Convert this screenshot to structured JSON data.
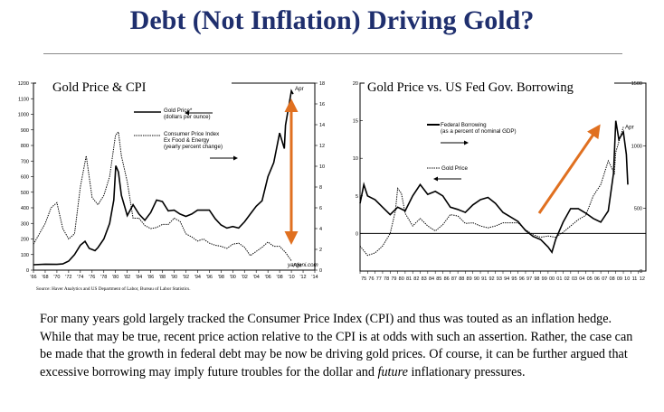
{
  "slide_title": "Debt (Not Inflation) Driving Gold?",
  "body_text": "For many years gold largely tracked the Consumer Price Index (CPI) and thus was touted as an inflation hedge.  While that may be true, recent price action relative to the CPI is at odds with such an assertion.  Rather, the case can be made that the growth in federal debt may be now be driving gold prices.  Of course, it can be further argued that excessive borrowing may imply",
  "body_text_end_before": "future troubles for the dollar and ",
  "body_text_emph": "future",
  "body_text_end_after": " inflationary pressures.",
  "accent_color": "#e07020",
  "title_color": "#1f2f6e",
  "chart_data": [
    {
      "type": "line",
      "title": "Gold Price & CPI",
      "source": "Source: Haver Analytics and US Department of Labor, Bureau of Labor Statistics.",
      "xlim": [
        1966,
        2014
      ],
      "x_ticks": [
        "'66",
        "'68",
        "'70",
        "'72",
        "'74",
        "'76",
        "'78",
        "'80",
        "'82",
        "'84",
        "'86",
        "'88",
        "'90",
        "'92",
        "'94",
        "'96",
        "'98",
        "'00",
        "'02",
        "'04",
        "'06",
        "'08",
        "'10",
        "'12",
        "'14"
      ],
      "y_left_lim": [
        0,
        1200
      ],
      "y_left_ticks": [
        "0",
        "100",
        "200",
        "300",
        "400",
        "500",
        "600",
        "700",
        "800",
        "900",
        "1000",
        "1100",
        "1200"
      ],
      "y_right_lim": [
        0,
        18
      ],
      "y_right_ticks": [
        "0",
        "2",
        "4",
        "6",
        "8",
        "10",
        "12",
        "14",
        "16",
        "18"
      ],
      "series": [
        {
          "name": "Gold Price*",
          "sub": "(dollars per ounce)",
          "axis": "left",
          "style": "solid",
          "points": [
            [
              1966,
              35
            ],
            [
              1968,
              38
            ],
            [
              1970,
              37
            ],
            [
              1971,
              40
            ],
            [
              1972,
              58
            ],
            [
              1973,
              100
            ],
            [
              1974,
              160
            ],
            [
              1974.8,
              185
            ],
            [
              1975.5,
              140
            ],
            [
              1976.5,
              125
            ],
            [
              1977,
              145
            ],
            [
              1978,
              200
            ],
            [
              1979,
              300
            ],
            [
              1979.7,
              450
            ],
            [
              1980.05,
              670
            ],
            [
              1980.5,
              630
            ],
            [
              1981,
              480
            ],
            [
              1982,
              350
            ],
            [
              1983,
              420
            ],
            [
              1984,
              360
            ],
            [
              1985,
              320
            ],
            [
              1986,
              370
            ],
            [
              1987,
              450
            ],
            [
              1988,
              440
            ],
            [
              1989,
              380
            ],
            [
              1990,
              385
            ],
            [
              1991,
              360
            ],
            [
              1992,
              345
            ],
            [
              1993,
              360
            ],
            [
              1994,
              385
            ],
            [
              1996,
              385
            ],
            [
              1997,
              330
            ],
            [
              1998,
              290
            ],
            [
              1999,
              270
            ],
            [
              2000,
              280
            ],
            [
              2001,
              270
            ],
            [
              2002,
              310
            ],
            [
              2003,
              360
            ],
            [
              2004,
              410
            ],
            [
              2005,
              445
            ],
            [
              2006,
              600
            ],
            [
              2007,
              690
            ],
            [
              2008,
              880
            ],
            [
              2008.8,
              780
            ],
            [
              2009,
              930
            ],
            [
              2010,
              1150
            ],
            [
              2010.3,
              1130
            ]
          ]
        },
        {
          "name": "Consumer Price Index",
          "sub": "Ex Food & Energy (yearly percent change)",
          "axis": "right",
          "style": "dotted",
          "points": [
            [
              1966,
              2.5
            ],
            [
              1967,
              3.5
            ],
            [
              1968,
              4.5
            ],
            [
              1969,
              6
            ],
            [
              1970,
              6.5
            ],
            [
              1971,
              4
            ],
            [
              1972,
              3
            ],
            [
              1973,
              3.5
            ],
            [
              1974,
              8
            ],
            [
              1975,
              11
            ],
            [
              1976,
              7
            ],
            [
              1977,
              6.3
            ],
            [
              1978,
              7.2
            ],
            [
              1979,
              9
            ],
            [
              1980,
              13
            ],
            [
              1980.5,
              13.3
            ],
            [
              1981,
              11
            ],
            [
              1982,
              8.5
            ],
            [
              1983,
              5
            ],
            [
              1984,
              5
            ],
            [
              1985,
              4.3
            ],
            [
              1986,
              4
            ],
            [
              1987,
              4.1
            ],
            [
              1988,
              4.4
            ],
            [
              1989,
              4.4
            ],
            [
              1990,
              5
            ],
            [
              1991,
              4.7
            ],
            [
              1992,
              3.5
            ],
            [
              1993,
              3.2
            ],
            [
              1994,
              2.8
            ],
            [
              1995,
              3
            ],
            [
              1996,
              2.6
            ],
            [
              1997,
              2.4
            ],
            [
              1998,
              2.3
            ],
            [
              1999,
              2.1
            ],
            [
              2000,
              2.5
            ],
            [
              2001,
              2.6
            ],
            [
              2002,
              2.2
            ],
            [
              2003,
              1.4
            ],
            [
              2004,
              1.8
            ],
            [
              2005,
              2.2
            ],
            [
              2006,
              2.7
            ],
            [
              2007,
              2.3
            ],
            [
              2008,
              2.3
            ],
            [
              2009,
              1.7
            ],
            [
              2010,
              0.9
            ]
          ]
        }
      ],
      "annotations": [
        {
          "text": "Apr",
          "series": "Gold Price*"
        },
        {
          "text": "Apr",
          "series": "Consumer Price Index"
        },
        {
          "text": "yardeni.com"
        }
      ]
    },
    {
      "type": "line",
      "title": "Gold Price vs. US Fed Gov. Borrowing",
      "xlim": [
        1975,
        2013
      ],
      "x_ticks": [
        "75",
        "76",
        "77",
        "78",
        "79",
        "80",
        "81",
        "82",
        "83",
        "84",
        "85",
        "86",
        "87",
        "88",
        "89",
        "90",
        "91",
        "92",
        "93",
        "94",
        "95",
        "96",
        "97",
        "98",
        "99",
        "00",
        "01",
        "02",
        "03",
        "04",
        "05",
        "06",
        "07",
        "08",
        "09",
        "10",
        "11",
        "12"
      ],
      "y_left_lim": [
        -5,
        20
      ],
      "y_left_ticks": [
        "0",
        "5",
        "10",
        "15",
        "20"
      ],
      "y_right_lim": [
        0,
        1500
      ],
      "y_right_ticks": [
        "0",
        "500",
        "1000",
        "1500"
      ],
      "series": [
        {
          "name": "Federal Borrowing",
          "sub": "(as a percent of nominal GDP)",
          "axis": "left",
          "style": "solid",
          "points": [
            [
              1975,
              4
            ],
            [
              1975.5,
              6.5
            ],
            [
              1976,
              5
            ],
            [
              1977,
              4.5
            ],
            [
              1978,
              3.5
            ],
            [
              1979,
              2.5
            ],
            [
              1980,
              3.5
            ],
            [
              1981,
              3
            ],
            [
              1982,
              5
            ],
            [
              1983,
              6.5
            ],
            [
              1984,
              5.2
            ],
            [
              1985,
              5.6
            ],
            [
              1986,
              5
            ],
            [
              1987,
              3.5
            ],
            [
              1988,
              3.2
            ],
            [
              1989,
              2.8
            ],
            [
              1990,
              3.8
            ],
            [
              1991,
              4.5
            ],
            [
              1992,
              4.8
            ],
            [
              1993,
              4
            ],
            [
              1994,
              2.8
            ],
            [
              1995,
              2.2
            ],
            [
              1996,
              1.6
            ],
            [
              1997,
              0.4
            ],
            [
              1998,
              -0.4
            ],
            [
              1999,
              -0.8
            ],
            [
              2000,
              -1.8
            ],
            [
              2000.5,
              -2.5
            ],
            [
              2001,
              -0.8
            ],
            [
              2002,
              1.5
            ],
            [
              2003,
              3.3
            ],
            [
              2004,
              3.3
            ],
            [
              2005,
              2.7
            ],
            [
              2006,
              2
            ],
            [
              2007,
              1.5
            ],
            [
              2008,
              3
            ],
            [
              2008.7,
              8
            ],
            [
              2009,
              15
            ],
            [
              2009.4,
              12.5
            ],
            [
              2010,
              13.5
            ],
            [
              2010.4,
              10.5
            ],
            [
              2010.6,
              6.5
            ]
          ]
        },
        {
          "name": "Gold Price",
          "axis": "right",
          "style": "dotted",
          "points": [
            [
              1975,
              200
            ],
            [
              1976,
              125
            ],
            [
              1977,
              145
            ],
            [
              1978,
              200
            ],
            [
              1979,
              300
            ],
            [
              1979.7,
              480
            ],
            [
              1980,
              660
            ],
            [
              1980.5,
              620
            ],
            [
              1981,
              460
            ],
            [
              1982,
              360
            ],
            [
              1983,
              420
            ],
            [
              1984,
              360
            ],
            [
              1985,
              320
            ],
            [
              1986,
              370
            ],
            [
              1987,
              450
            ],
            [
              1988,
              440
            ],
            [
              1989,
              380
            ],
            [
              1990,
              385
            ],
            [
              1991,
              360
            ],
            [
              1992,
              345
            ],
            [
              1993,
              360
            ],
            [
              1994,
              385
            ],
            [
              1996,
              385
            ],
            [
              1997,
              330
            ],
            [
              1998,
              290
            ],
            [
              1999,
              270
            ],
            [
              2000,
              280
            ],
            [
              2001,
              270
            ],
            [
              2002,
              310
            ],
            [
              2003,
              360
            ],
            [
              2004,
              410
            ],
            [
              2005,
              445
            ],
            [
              2006,
              600
            ],
            [
              2007,
              690
            ],
            [
              2008,
              880
            ],
            [
              2008.8,
              780
            ],
            [
              2009,
              950
            ],
            [
              2010,
              1150
            ]
          ]
        }
      ],
      "annotations": [
        {
          "text": "Apr",
          "series": "Gold Price"
        }
      ]
    }
  ]
}
